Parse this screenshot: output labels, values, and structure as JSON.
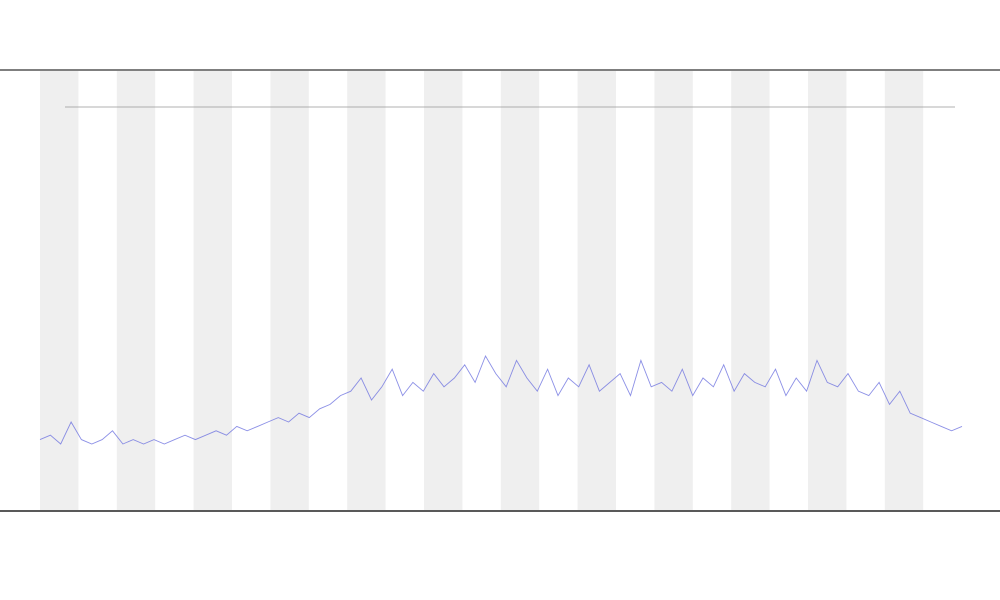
{
  "chart_data": {
    "type": "line",
    "color": "#6f74e0",
    "values": [
      16,
      17,
      15,
      20,
      16,
      15,
      16,
      18,
      15,
      16,
      15,
      16,
      15,
      16,
      17,
      16,
      17,
      18,
      17,
      19,
      18,
      19,
      20,
      21,
      20,
      22,
      21,
      23,
      24,
      26,
      27,
      30,
      25,
      28,
      32,
      26,
      29,
      27,
      31,
      28,
      30,
      33,
      29,
      35,
      31,
      28,
      34,
      30,
      27,
      32,
      26,
      30,
      28,
      33,
      27,
      29,
      31,
      26,
      34,
      28,
      29,
      27,
      32,
      26,
      30,
      28,
      33,
      27,
      31,
      29,
      28,
      32,
      26,
      30,
      27,
      34,
      29,
      28,
      31,
      27,
      26,
      29,
      24,
      27,
      22,
      21,
      20,
      19,
      18,
      19
    ],
    "ylim": [
      0,
      100
    ]
  }
}
